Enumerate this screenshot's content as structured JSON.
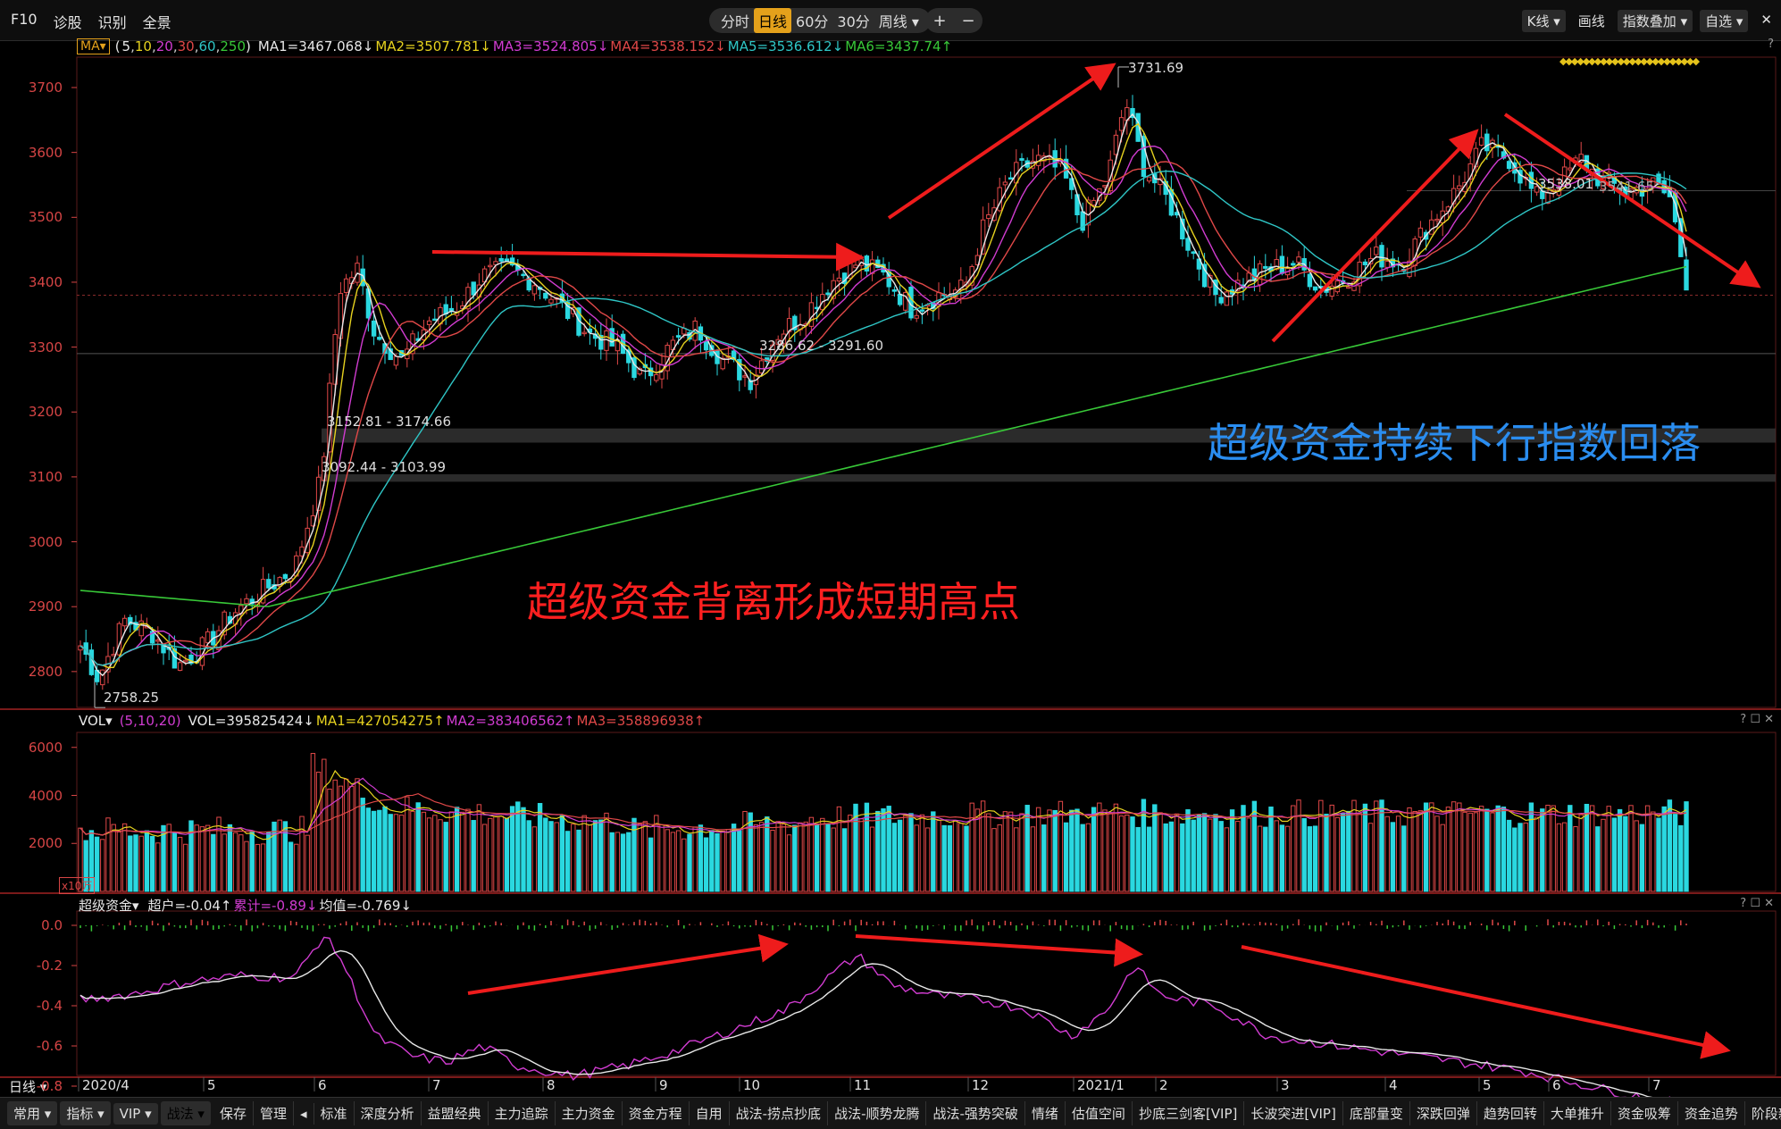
{
  "toolbar": {
    "left_items": [
      "F10",
      "诊股",
      "识别",
      "全景"
    ],
    "periods": [
      "分时",
      "日线",
      "60分",
      "30分",
      "周线 ▾"
    ],
    "active_period": "日线",
    "zoom_in": "+",
    "zoom_out": "−",
    "right_items": [
      "K线 ▾",
      "画线",
      "指数叠加 ▾",
      "自选 ▾"
    ],
    "close_glyph": "✕",
    "help": "?"
  },
  "ma_legend": {
    "button": "MA▾",
    "params_open": "(",
    "params": [
      "5",
      "10",
      "20",
      "30",
      "60",
      "250"
    ],
    "params_close": ")",
    "items": [
      {
        "text": "MA1=3467.068↓",
        "color": "#e8e8e8"
      },
      {
        "text": "MA2=3507.781↓",
        "color": "#e6d21f"
      },
      {
        "text": "MA3=3524.805↓",
        "color": "#d13cd1"
      },
      {
        "text": "MA4=3538.152↓",
        "color": "#e04848"
      },
      {
        "text": "MA5=3536.612↓",
        "color": "#2fc6c6"
      },
      {
        "text": "MA6=3437.74↑",
        "color": "#38c838"
      }
    ]
  },
  "price_axis": [
    "3700",
    "3600",
    "3500",
    "3400",
    "3300",
    "3200",
    "3100",
    "3000",
    "2900",
    "2800"
  ],
  "price_annotations": {
    "high": "3731.69",
    "low": "2758.25",
    "gap1": "3286.62 - 3291.60",
    "gap2": "3152.81 - 3174.66",
    "gap3": "3092.44 - 3103.99",
    "cursor": "3538.01",
    "cursor2": "3541.65"
  },
  "commentary": {
    "red_text": "超级资金背离形成短期高点",
    "blue_text": "超级资金持续下行指数回落"
  },
  "vol_legend": {
    "button": "VOL▾",
    "params": "(5,10,20)",
    "items": [
      {
        "text": "VOL=395825424↓",
        "color": "#e8e8e8"
      },
      {
        "text": "MA1=427054275↑",
        "color": "#e6d21f"
      },
      {
        "text": "MA2=383406562↑",
        "color": "#d13cd1"
      },
      {
        "text": "MA3=358896938↑",
        "color": "#e04848"
      }
    ],
    "controls": "? ☐ ✕"
  },
  "vol_axis": [
    "6000",
    "4000",
    "2000"
  ],
  "vol_unit": "x10万",
  "super_legend": {
    "button": "超级资金▾",
    "items": [
      {
        "text": "超户=-0.04↑",
        "color": "#e8e8e8"
      },
      {
        "text": "累计=-0.89↓",
        "color": "#d13cd1"
      },
      {
        "text": "均值=-0.769↓",
        "color": "#e8e8e8"
      }
    ],
    "controls": "? ☐ ✕"
  },
  "super_axis": [
    "0.0",
    "-0.2",
    "-0.4",
    "-0.6",
    "-0.8"
  ],
  "x_axis": {
    "period_label": "日线 ▾",
    "labels": [
      "2020/4",
      "5",
      "6",
      "7",
      "8",
      "9",
      "10",
      "11",
      "12",
      "2021/1",
      "2",
      "3",
      "4",
      "5",
      "6",
      "7"
    ]
  },
  "bottom_tabs": {
    "dropdowns": [
      "常用 ▾",
      "指标 ▾",
      "VIP ▾",
      "战法 ▾"
    ],
    "buttons": [
      "保存",
      "管理"
    ],
    "arrow_left": "◂",
    "tabs": [
      "标准",
      "深度分析",
      "益盟经典",
      "主力追踪",
      "主力资金",
      "资金方程",
      "自用",
      "战法-捞点抄底",
      "战法-顺势龙腾",
      "战法-强势突破",
      "情绪",
      "估值空间",
      "抄底三剑客[VIP]",
      "长波突进[VIP]",
      "底部量变",
      "深跌回弹",
      "趋势回转",
      "大单推升",
      "资金吸筹",
      "资金追势",
      "阶段新高"
    ],
    "arrow_right": "▸"
  },
  "colors": {
    "up": "#e04848",
    "down": "#2ad8e0",
    "ma_white": "#e8e8e8",
    "ma_yellow": "#e6d21f",
    "ma_magenta": "#d13cd1",
    "ma_red": "#e04848",
    "ma_cyan": "#2fc6c6",
    "ma_green": "#38c838",
    "arrow": "#ee1c1c",
    "blue_text": "#2a8df0",
    "red_text": "#ff2020",
    "accent": "#e4a11b"
  }
}
